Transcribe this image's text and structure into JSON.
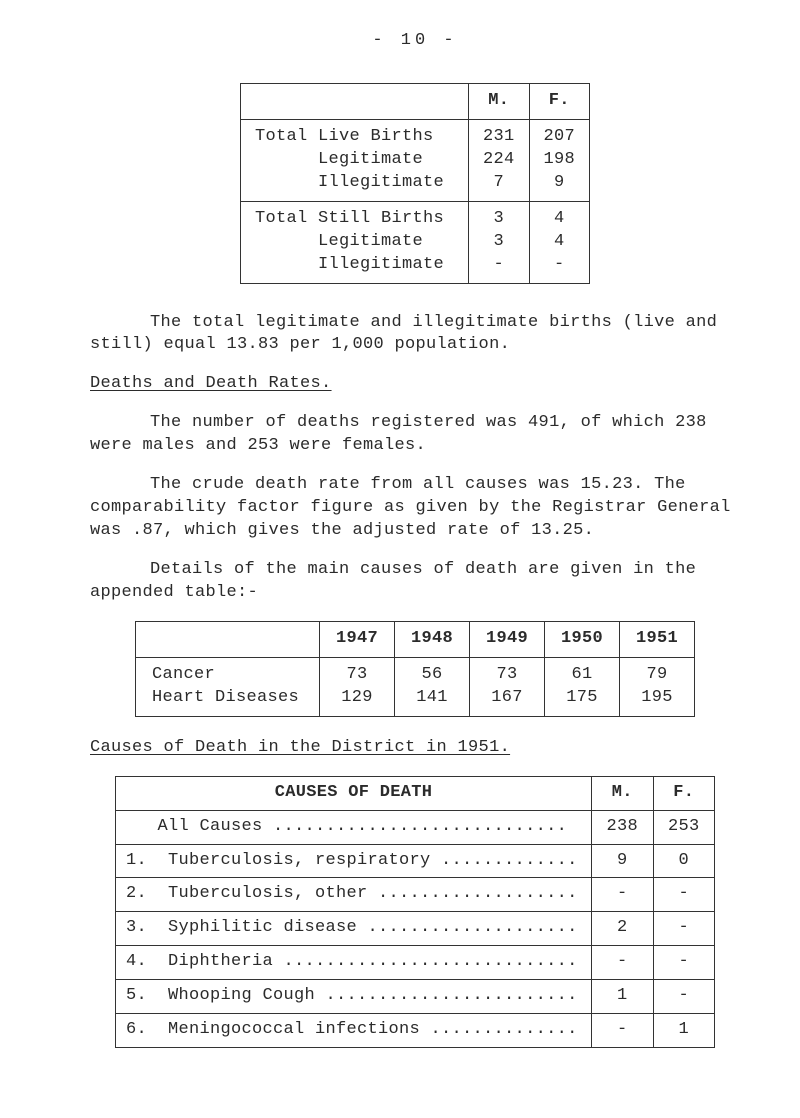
{
  "page_header": "- 10 -",
  "births_table": {
    "col_headers": [
      "",
      "M.",
      "F."
    ],
    "row1_label": "Total Live Births\n      Legitimate\n      Illegitimate",
    "row1_m": "231\n224\n7",
    "row1_f": "207\n198\n9",
    "row2_label": "Total Still Births\n      Legitimate\n      Illegitimate",
    "row2_m": "3\n3\n-",
    "row2_f": "4\n4\n-"
  },
  "para1": "The total legitimate and illegitimate births (live and still) equal 13.83 per 1,000 population.",
  "heading1": "Deaths and Death Rates.",
  "para2": "The number of deaths registered was 491, of which 238 were males and 253 were females.",
  "para3": "The crude death rate from all causes was 15.23.  The comparability factor figure as given by the Registrar General was .87, which gives the adjusted rate of 13.25.",
  "para4": "Details of the main causes of death are given in the appended table:-",
  "years_table": {
    "headers": [
      "",
      "1947",
      "1948",
      "1949",
      "1950",
      "1951"
    ],
    "r1_label": "Cancer\nHeart Diseases",
    "r1_c1": "73\n129",
    "r1_c2": "56\n141",
    "r1_c3": "73\n167",
    "r1_c4": "61\n175",
    "r1_c5": "79\n195"
  },
  "heading2": "Causes of Death in the District in 1951.",
  "causes_table": {
    "h1": "CAUSES OF DEATH",
    "h2": "M.",
    "h3": "F.",
    "all_label": "   All Causes ............................",
    "all_m": "238",
    "all_f": "253",
    "rows": [
      {
        "label": "1.  Tuberculosis, respiratory .............",
        "m": "9",
        "f": "0"
      },
      {
        "label": "2.  Tuberculosis, other ...................",
        "m": "-",
        "f": "-"
      },
      {
        "label": "3.  Syphilitic disease ....................",
        "m": "2",
        "f": "-"
      },
      {
        "label": "4.  Diphtheria ............................",
        "m": "-",
        "f": "-"
      },
      {
        "label": "5.  Whooping Cough ........................",
        "m": "1",
        "f": "-"
      },
      {
        "label": "6.  Meningococcal infections ..............",
        "m": "-",
        "f": "1"
      }
    ]
  }
}
